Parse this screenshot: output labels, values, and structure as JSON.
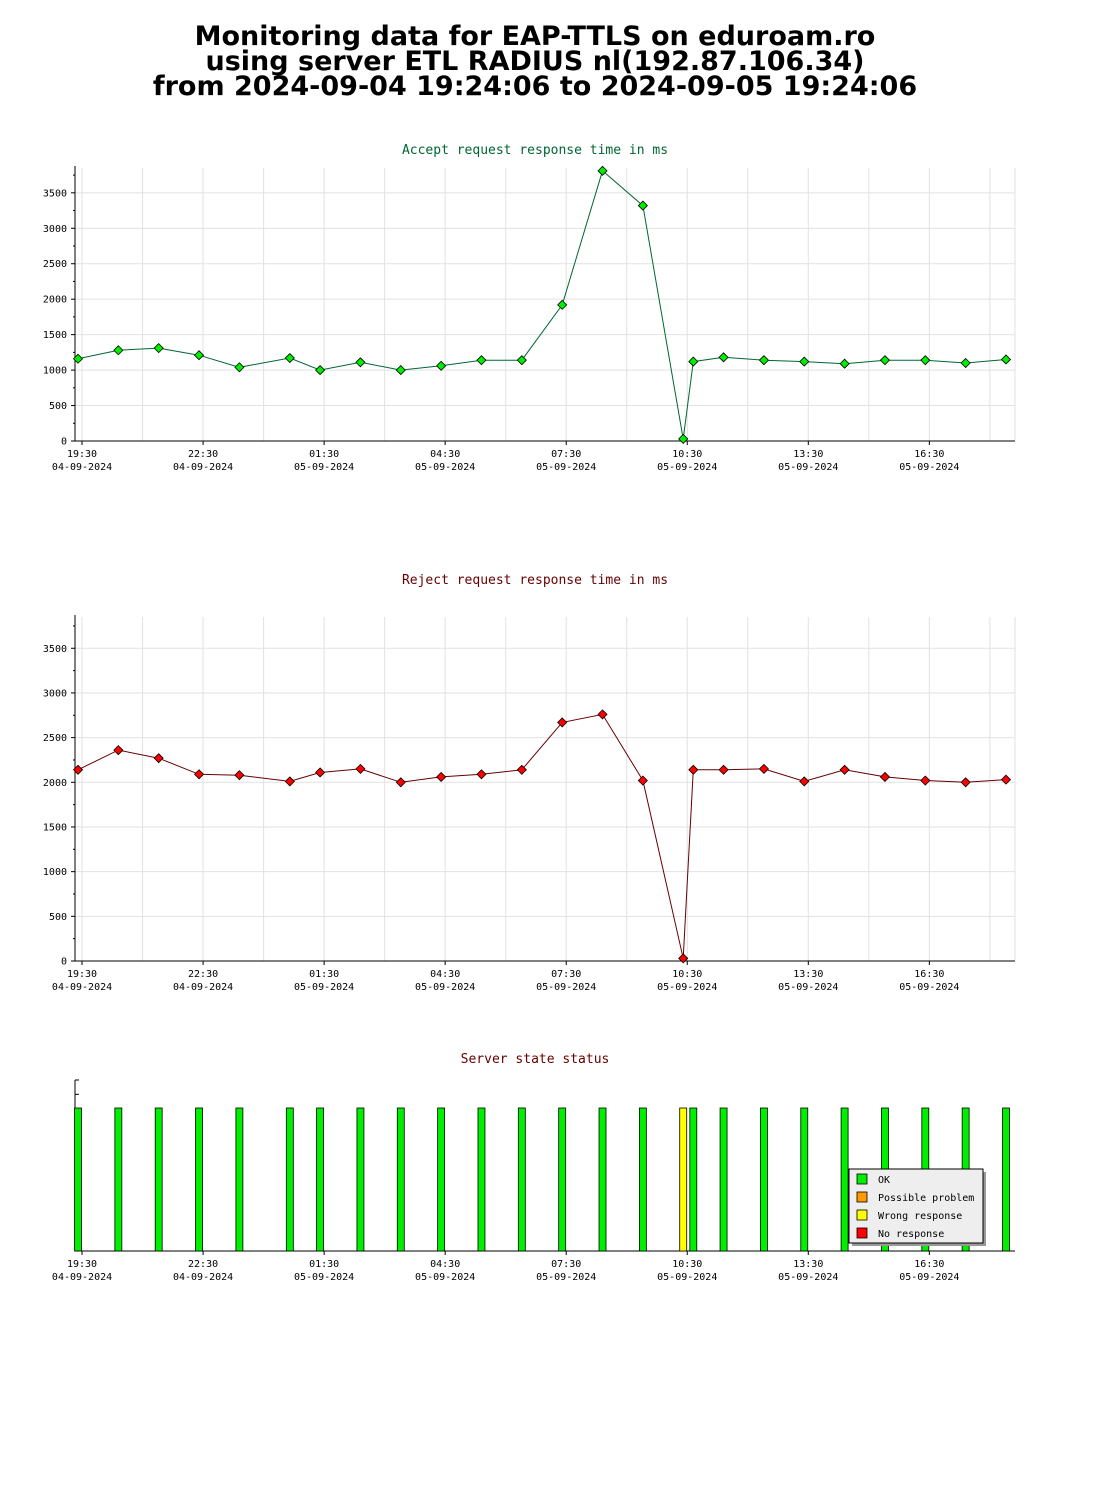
{
  "title_lines": [
    "Monitoring data for EAP-TTLS on eduroam.ro",
    "using server ETL RADIUS nl(192.87.106.34)",
    "from 2024-09-04 19:24:06 to 2024-09-05 19:24:06"
  ],
  "colors": {
    "accept_title": "#006633",
    "reject_title": "#660000",
    "status_title": "#660000",
    "accept_marker": "#00ee00",
    "accept_line": "#006633",
    "reject_marker": "#ff0000",
    "reject_line": "#660000",
    "ok": "#00ee00",
    "possible_problem": "#ff9900",
    "wrong_response": "#ffff00",
    "no_response": "#ff0000"
  },
  "chart_data": [
    {
      "type": "line",
      "title": "Accept request response time in ms",
      "ylim": [
        0,
        3850
      ],
      "yticks": [
        0,
        500,
        1000,
        1500,
        2000,
        2500,
        3000,
        3500
      ],
      "grid": true,
      "x_ticks": [
        {
          "time": "19:30",
          "date": "04-09-2024"
        },
        {
          "time": "22:30",
          "date": "04-09-2024"
        },
        {
          "time": "01:30",
          "date": "05-09-2024"
        },
        {
          "time": "04:30",
          "date": "05-09-2024"
        },
        {
          "time": "07:30",
          "date": "05-09-2024"
        },
        {
          "time": "10:30",
          "date": "05-09-2024"
        },
        {
          "time": "13:30",
          "date": "05-09-2024"
        },
        {
          "time": "16:30",
          "date": "05-09-2024"
        }
      ],
      "x": [
        "2024-09-04 19:24",
        "2024-09-04 20:24",
        "2024-09-04 21:24",
        "2024-09-04 22:24",
        "2024-09-04 23:24",
        "2024-09-05 00:39",
        "2024-09-05 01:24",
        "2024-09-05 02:24",
        "2024-09-05 03:24",
        "2024-09-05 04:24",
        "2024-09-05 05:24",
        "2024-09-05 06:24",
        "2024-09-05 07:24",
        "2024-09-05 08:24",
        "2024-09-05 09:24",
        "2024-09-05 10:24",
        "2024-09-05 10:39",
        "2024-09-05 11:24",
        "2024-09-05 12:24",
        "2024-09-05 13:24",
        "2024-09-05 14:24",
        "2024-09-05 15:24",
        "2024-09-05 16:24",
        "2024-09-05 17:24",
        "2024-09-05 18:24"
      ],
      "values": [
        1160,
        1280,
        1310,
        1210,
        1040,
        1170,
        1000,
        1110,
        1000,
        1060,
        1140,
        1140,
        1920,
        3810,
        3320,
        30,
        1120,
        1180,
        1140,
        1120,
        1090,
        1140,
        1140,
        1100,
        1150
      ]
    },
    {
      "type": "line",
      "title": "Reject request response time in ms",
      "ylim": [
        0,
        3850
      ],
      "yticks": [
        0,
        500,
        1000,
        1500,
        2000,
        2500,
        3000,
        3500
      ],
      "grid": true,
      "x_ticks": [
        {
          "time": "19:30",
          "date": "04-09-2024"
        },
        {
          "time": "22:30",
          "date": "04-09-2024"
        },
        {
          "time": "01:30",
          "date": "05-09-2024"
        },
        {
          "time": "04:30",
          "date": "05-09-2024"
        },
        {
          "time": "07:30",
          "date": "05-09-2024"
        },
        {
          "time": "10:30",
          "date": "05-09-2024"
        },
        {
          "time": "13:30",
          "date": "05-09-2024"
        },
        {
          "time": "16:30",
          "date": "05-09-2024"
        }
      ],
      "x": [
        "2024-09-04 19:24",
        "2024-09-04 20:24",
        "2024-09-04 21:24",
        "2024-09-04 22:24",
        "2024-09-04 23:24",
        "2024-09-05 00:39",
        "2024-09-05 01:24",
        "2024-09-05 02:24",
        "2024-09-05 03:24",
        "2024-09-05 04:24",
        "2024-09-05 05:24",
        "2024-09-05 06:24",
        "2024-09-05 07:24",
        "2024-09-05 08:24",
        "2024-09-05 09:24",
        "2024-09-05 10:24",
        "2024-09-05 10:39",
        "2024-09-05 11:24",
        "2024-09-05 12:24",
        "2024-09-05 13:24",
        "2024-09-05 14:24",
        "2024-09-05 15:24",
        "2024-09-05 16:24",
        "2024-09-05 17:24",
        "2024-09-05 18:24"
      ],
      "values": [
        2140,
        2360,
        2270,
        2090,
        2080,
        2010,
        2110,
        2150,
        2000,
        2060,
        2090,
        2140,
        2670,
        2760,
        2020,
        30,
        2140,
        2140,
        2150,
        2010,
        2140,
        2060,
        2020,
        2000,
        2030
      ]
    },
    {
      "type": "bar",
      "title": "Server state status",
      "legend_position": "bottom-right",
      "legend": [
        {
          "key": "ok",
          "label": "OK"
        },
        {
          "key": "possible_problem",
          "label": "Possible problem"
        },
        {
          "key": "wrong_response",
          "label": "Wrong response"
        },
        {
          "key": "no_response",
          "label": "No response"
        }
      ],
      "x_ticks": [
        {
          "time": "19:30",
          "date": "04-09-2024"
        },
        {
          "time": "22:30",
          "date": "04-09-2024"
        },
        {
          "time": "01:30",
          "date": "05-09-2024"
        },
        {
          "time": "04:30",
          "date": "05-09-2024"
        },
        {
          "time": "07:30",
          "date": "05-09-2024"
        },
        {
          "time": "10:30",
          "date": "05-09-2024"
        },
        {
          "time": "13:30",
          "date": "05-09-2024"
        },
        {
          "time": "16:30",
          "date": "05-09-2024"
        }
      ],
      "x": [
        "2024-09-04 19:24",
        "2024-09-04 20:24",
        "2024-09-04 21:24",
        "2024-09-04 22:24",
        "2024-09-04 23:24",
        "2024-09-05 00:39",
        "2024-09-05 01:24",
        "2024-09-05 02:24",
        "2024-09-05 03:24",
        "2024-09-05 04:24",
        "2024-09-05 05:24",
        "2024-09-05 06:24",
        "2024-09-05 07:24",
        "2024-09-05 08:24",
        "2024-09-05 09:24",
        "2024-09-05 10:24",
        "2024-09-05 10:39",
        "2024-09-05 11:24",
        "2024-09-05 12:24",
        "2024-09-05 13:24",
        "2024-09-05 14:24",
        "2024-09-05 15:24",
        "2024-09-05 16:24",
        "2024-09-05 17:24",
        "2024-09-05 18:24"
      ],
      "states": [
        "ok",
        "ok",
        "ok",
        "ok",
        "ok",
        "ok",
        "ok",
        "ok",
        "ok",
        "ok",
        "ok",
        "ok",
        "ok",
        "ok",
        "ok",
        "wrong_response",
        "ok",
        "ok",
        "ok",
        "ok",
        "ok",
        "ok",
        "ok",
        "ok",
        "ok"
      ]
    }
  ]
}
